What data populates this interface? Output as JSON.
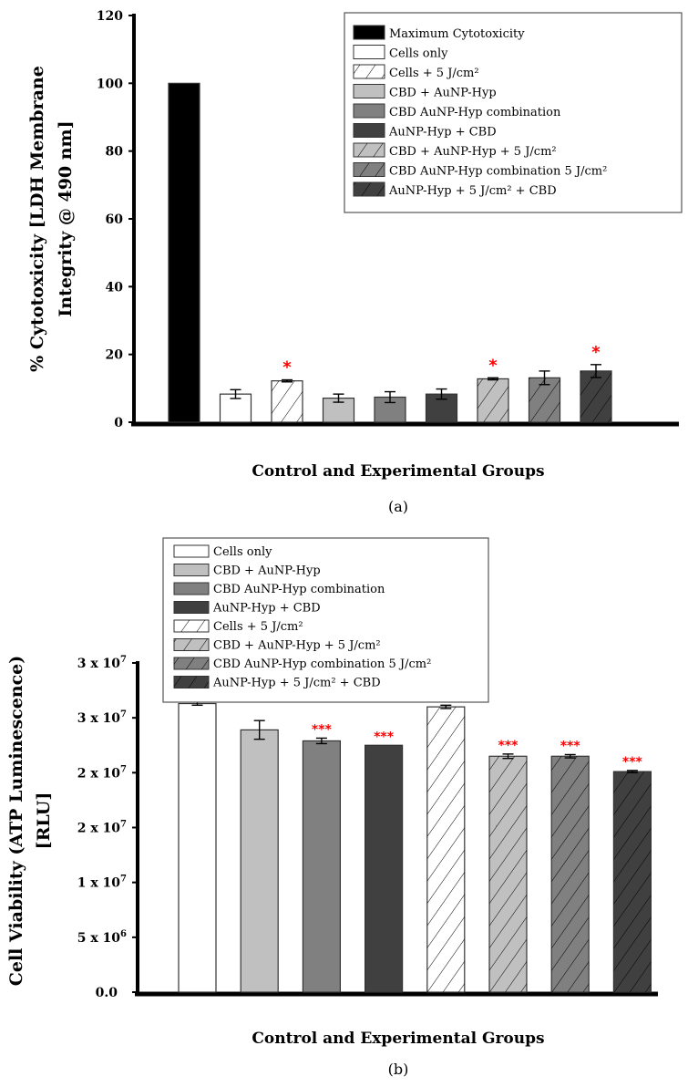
{
  "colors": {
    "black": "#000000",
    "white": "#ffffff",
    "light": "#c0c0c0",
    "mid": "#808080",
    "dark": "#404040",
    "star": "#ff0000"
  },
  "chart_data": [
    {
      "type": "bar",
      "panel_label": "(a)",
      "title": "",
      "ylabel_lines": [
        "% Cytotoxicity [LDH Membrane",
        "Integrity @ 490 nm]"
      ],
      "xlabel": "Control and Experimental Groups",
      "ylim": [
        0,
        120
      ],
      "yticks": [
        0,
        20,
        40,
        60,
        80,
        100,
        120
      ],
      "ytick_labels": [
        "0",
        "20",
        "40",
        "60",
        "80",
        "100",
        "120"
      ],
      "legend_placement": "top-right",
      "categories": [
        "Maximum Cytotoxicity",
        "Cells only",
        "Cells + 5 J/cm²",
        "CBD + AuNP-Hyp",
        "CBD AuNP-Hyp combination",
        "AuNP-Hyp + CBD",
        "CBD + AuNP-Hyp + 5 J/cm²",
        "CBD AuNP-Hyp combination 5 J/cm²",
        "AuNP-Hyp + 5 J/cm² + CBD"
      ],
      "fills": [
        "black",
        "white",
        "white",
        "light",
        "mid",
        "dark",
        "light",
        "mid",
        "dark"
      ],
      "hatched": [
        false,
        false,
        true,
        false,
        false,
        false,
        true,
        true,
        true
      ],
      "values": [
        100,
        8.3,
        12.2,
        7.1,
        7.4,
        8.3,
        12.8,
        13.1,
        15.1
      ],
      "errors": [
        0,
        1.3,
        0.3,
        1.2,
        1.6,
        1.5,
        0.3,
        2.0,
        1.9
      ],
      "significance": [
        "",
        "",
        "*",
        "",
        "",
        "",
        "*",
        "",
        "*"
      ]
    },
    {
      "type": "bar",
      "panel_label": "(b)",
      "title": "",
      "ylabel_lines": [
        "Cell Viability (ATP Luminescence)",
        "[RLU]"
      ],
      "xlabel": "Control and Experimental Groups",
      "ylim": [
        0,
        30000000
      ],
      "yticks": [
        0,
        5000000,
        10000000,
        15000000,
        20000000,
        25000000,
        30000000
      ],
      "ytick_labels": [
        [
          "0.0",
          ""
        ],
        [
          "5 x 10",
          "6"
        ],
        [
          "1 x 10",
          "7"
        ],
        [
          "2 x 10",
          "7"
        ],
        [
          "2 x 10",
          "7"
        ],
        [
          "3 x 10",
          "7"
        ],
        [
          "3 x 10",
          "7"
        ]
      ],
      "legend_placement": "top-left",
      "categories": [
        "Cells only",
        "CBD + AuNP-Hyp",
        "CBD AuNP-Hyp combination",
        "AuNP-Hyp + CBD",
        "Cells + 5 J/cm²",
        "CBD + AuNP-Hyp + 5 J/cm²",
        "CBD AuNP-Hyp combination 5 J/cm²",
        "AuNP-Hyp + 5 J/cm² + CBD"
      ],
      "fills": [
        "white",
        "light",
        "mid",
        "dark",
        "white",
        "light",
        "mid",
        "dark"
      ],
      "hatched": [
        false,
        false,
        false,
        false,
        true,
        true,
        true,
        true
      ],
      "values": [
        26300000,
        23900000,
        22900000,
        22500000,
        26000000,
        21500000,
        21500000,
        20100000
      ],
      "errors": [
        150000,
        850000,
        250000,
        0,
        150000,
        200000,
        150000,
        100000
      ],
      "significance": [
        "",
        "",
        "***",
        "***",
        "",
        "***",
        "***",
        "***"
      ]
    }
  ]
}
